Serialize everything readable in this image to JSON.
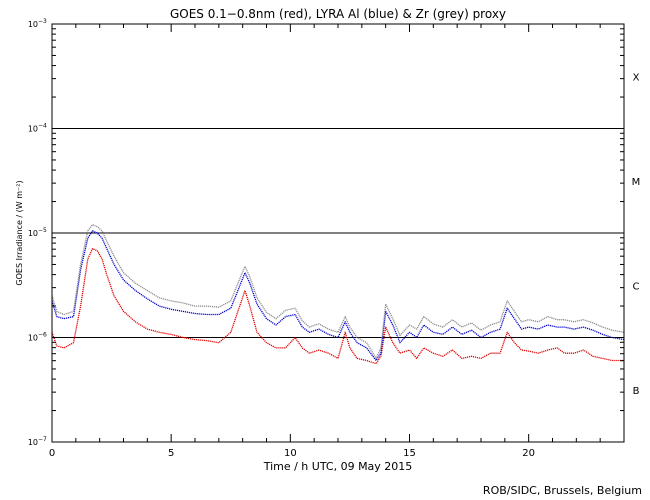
{
  "chart_data": {
    "type": "line",
    "title": "GOES 0.1−0.8nm (red), LYRA Al (blue) & Zr (grey) proxy",
    "xlabel": "Time / h UTC, 09 May 2015",
    "ylabel": "GOES Irradiance / (W m⁻²)",
    "credit": "ROB/SIDC, Brussels, Belgium",
    "x_range": [
      0,
      24
    ],
    "y_log_range": [
      -7,
      -3
    ],
    "x_ticks": [
      {
        "value": 0,
        "label": "0"
      },
      {
        "value": 5,
        "label": "5"
      },
      {
        "value": 10,
        "label": "10"
      },
      {
        "value": 15,
        "label": "15"
      },
      {
        "value": 20,
        "label": "20"
      }
    ],
    "y_ticks": [
      {
        "exp": -7,
        "base": "10",
        "sup": "−7"
      },
      {
        "exp": -6,
        "base": "10",
        "sup": "−6"
      },
      {
        "exp": -5,
        "base": "10",
        "sup": "−5"
      },
      {
        "exp": -4,
        "base": "10",
        "sup": "−4"
      },
      {
        "exp": -3,
        "base": "10",
        "sup": "−3"
      }
    ],
    "flare_class_lines": [
      -6,
      -5,
      -4
    ],
    "flare_classes": [
      {
        "label": "X",
        "log": -3.5
      },
      {
        "label": "M",
        "log": -4.5
      },
      {
        "label": "C",
        "log": -5.5
      },
      {
        "label": "B",
        "log": -6.5
      }
    ],
    "series": [
      {
        "name": "GOES 0.1-0.8nm",
        "color": "#e00000",
        "x": [
          0.0,
          0.2,
          0.5,
          0.9,
          1.2,
          1.5,
          1.7,
          1.9,
          2.1,
          2.3,
          2.6,
          3.0,
          3.5,
          4.0,
          4.5,
          5.0,
          5.5,
          6.0,
          6.5,
          7.0,
          7.5,
          7.8,
          8.1,
          8.3,
          8.6,
          9.0,
          9.4,
          9.8,
          10.2,
          10.5,
          10.8,
          11.2,
          11.6,
          12.0,
          12.3,
          12.5,
          12.8,
          13.2,
          13.6,
          13.8,
          14.0,
          14.3,
          14.6,
          15.0,
          15.3,
          15.6,
          16.0,
          16.4,
          16.8,
          17.2,
          17.6,
          18.0,
          18.4,
          18.8,
          19.1,
          19.4,
          19.7,
          20.0,
          20.4,
          20.8,
          21.2,
          21.5,
          21.9,
          22.3,
          22.7,
          23.1,
          23.5,
          24.0
        ],
        "y": [
          -5.95,
          -6.08,
          -6.1,
          -6.05,
          -5.7,
          -5.25,
          -5.15,
          -5.17,
          -5.25,
          -5.4,
          -5.6,
          -5.75,
          -5.85,
          -5.92,
          -5.95,
          -5.97,
          -6.0,
          -6.02,
          -6.03,
          -6.05,
          -5.95,
          -5.75,
          -5.55,
          -5.7,
          -5.95,
          -6.05,
          -6.1,
          -6.1,
          -6.0,
          -6.1,
          -6.15,
          -6.12,
          -6.15,
          -6.2,
          -5.95,
          -6.1,
          -6.2,
          -6.22,
          -6.25,
          -6.18,
          -5.9,
          -6.05,
          -6.15,
          -6.12,
          -6.2,
          -6.1,
          -6.15,
          -6.18,
          -6.12,
          -6.2,
          -6.18,
          -6.2,
          -6.15,
          -6.15,
          -5.95,
          -6.05,
          -6.12,
          -6.13,
          -6.15,
          -6.12,
          -6.1,
          -6.15,
          -6.15,
          -6.12,
          -6.18,
          -6.2,
          -6.22,
          -6.22
        ]
      },
      {
        "name": "LYRA Al proxy",
        "color": "#0000d0",
        "x": [
          0.0,
          0.2,
          0.5,
          0.9,
          1.2,
          1.5,
          1.7,
          1.9,
          2.1,
          2.3,
          2.6,
          3.0,
          3.5,
          4.0,
          4.5,
          5.0,
          5.5,
          6.0,
          6.5,
          7.0,
          7.5,
          7.8,
          8.1,
          8.3,
          8.6,
          9.0,
          9.4,
          9.8,
          10.2,
          10.5,
          10.8,
          11.2,
          11.6,
          12.0,
          12.3,
          12.5,
          12.8,
          13.2,
          13.6,
          13.8,
          14.0,
          14.3,
          14.6,
          15.0,
          15.3,
          15.6,
          16.0,
          16.4,
          16.8,
          17.2,
          17.6,
          18.0,
          18.4,
          18.8,
          19.1,
          19.4,
          19.7,
          20.0,
          20.4,
          20.8,
          21.2,
          21.5,
          21.9,
          22.3,
          22.7,
          23.1,
          23.5,
          24.0
        ],
        "y": [
          -5.65,
          -5.8,
          -5.82,
          -5.8,
          -5.35,
          -5.05,
          -4.98,
          -5.0,
          -5.05,
          -5.15,
          -5.3,
          -5.45,
          -5.55,
          -5.63,
          -5.7,
          -5.73,
          -5.75,
          -5.77,
          -5.78,
          -5.78,
          -5.72,
          -5.55,
          -5.38,
          -5.48,
          -5.68,
          -5.82,
          -5.88,
          -5.8,
          -5.78,
          -5.9,
          -5.95,
          -5.92,
          -5.97,
          -6.0,
          -5.85,
          -5.95,
          -6.05,
          -6.1,
          -6.22,
          -6.15,
          -5.75,
          -5.88,
          -6.05,
          -5.95,
          -6.0,
          -5.88,
          -5.95,
          -5.97,
          -5.9,
          -5.97,
          -5.93,
          -6.0,
          -5.95,
          -5.92,
          -5.72,
          -5.82,
          -5.92,
          -5.9,
          -5.92,
          -5.88,
          -5.9,
          -5.9,
          -5.92,
          -5.9,
          -5.93,
          -5.97,
          -6.0,
          -6.02
        ]
      },
      {
        "name": "LYRA Zr proxy",
        "color": "#8c8c8c",
        "x": [
          0.0,
          0.2,
          0.5,
          0.9,
          1.2,
          1.5,
          1.7,
          1.9,
          2.1,
          2.3,
          2.6,
          3.0,
          3.5,
          4.0,
          4.5,
          5.0,
          5.5,
          6.0,
          6.5,
          7.0,
          7.5,
          7.8,
          8.1,
          8.3,
          8.6,
          9.0,
          9.4,
          9.8,
          10.2,
          10.5,
          10.8,
          11.2,
          11.6,
          12.0,
          12.3,
          12.5,
          12.8,
          13.2,
          13.6,
          13.8,
          14.0,
          14.3,
          14.6,
          15.0,
          15.3,
          15.6,
          16.0,
          16.4,
          16.8,
          17.2,
          17.6,
          18.0,
          18.4,
          18.8,
          19.1,
          19.4,
          19.7,
          20.0,
          20.4,
          20.8,
          21.2,
          21.5,
          21.9,
          22.3,
          22.7,
          23.1,
          23.5,
          24.0
        ],
        "y": [
          -5.6,
          -5.75,
          -5.78,
          -5.75,
          -5.3,
          -4.98,
          -4.92,
          -4.94,
          -4.98,
          -5.08,
          -5.22,
          -5.38,
          -5.48,
          -5.55,
          -5.62,
          -5.65,
          -5.67,
          -5.7,
          -5.7,
          -5.71,
          -5.65,
          -5.48,
          -5.32,
          -5.42,
          -5.62,
          -5.76,
          -5.82,
          -5.74,
          -5.72,
          -5.84,
          -5.9,
          -5.87,
          -5.92,
          -5.95,
          -5.8,
          -5.9,
          -6.0,
          -6.05,
          -6.2,
          -6.1,
          -5.68,
          -5.82,
          -5.98,
          -5.88,
          -5.92,
          -5.8,
          -5.87,
          -5.9,
          -5.83,
          -5.9,
          -5.86,
          -5.93,
          -5.88,
          -5.85,
          -5.65,
          -5.75,
          -5.85,
          -5.83,
          -5.85,
          -5.8,
          -5.83,
          -5.83,
          -5.85,
          -5.83,
          -5.86,
          -5.9,
          -5.93,
          -5.95
        ]
      }
    ]
  }
}
